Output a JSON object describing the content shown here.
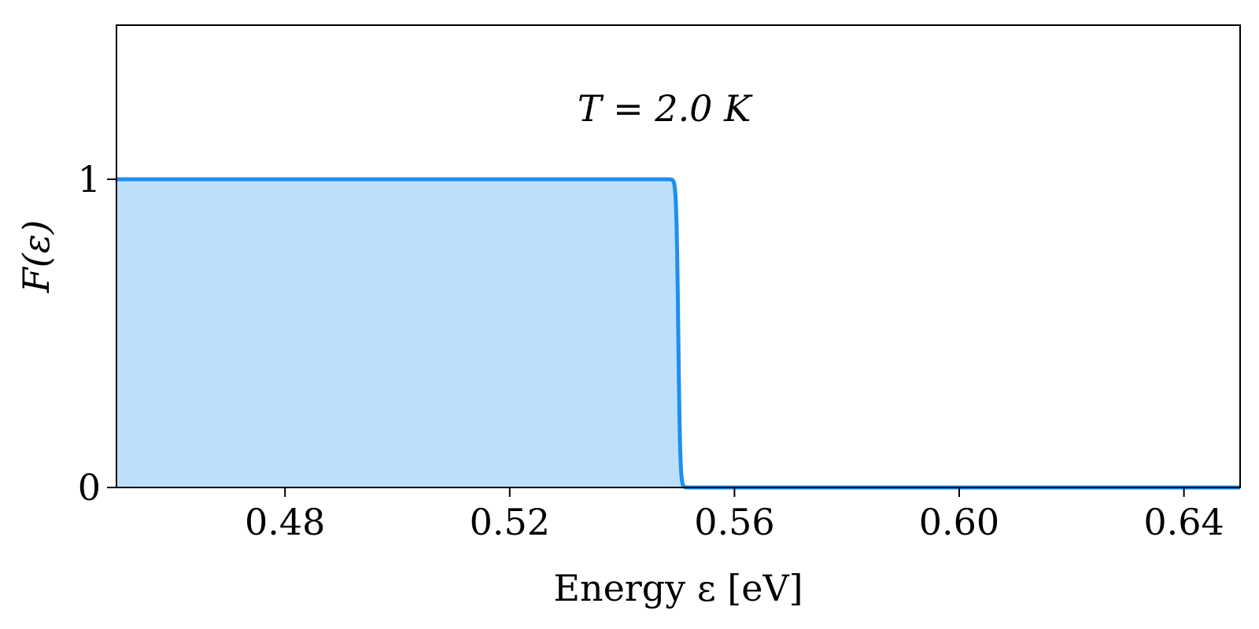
{
  "chart_data": {
    "type": "area",
    "title": "",
    "xlabel": "Energy ε [eV]",
    "ylabel": "F(ε)",
    "xlim": [
      0.45,
      0.65
    ],
    "ylim": [
      0,
      1.5
    ],
    "xticks": [
      {
        "value": 0.48,
        "label": "0.48"
      },
      {
        "value": 0.52,
        "label": "0.52"
      },
      {
        "value": 0.56,
        "label": "0.56"
      },
      {
        "value": 0.6,
        "label": "0.60"
      },
      {
        "value": 0.64,
        "label": "0.64"
      }
    ],
    "yticks": [
      {
        "value": 0,
        "label": "0"
      },
      {
        "value": 1,
        "label": "1"
      }
    ],
    "grid": false,
    "series": [
      {
        "color": "#1e8ff0",
        "fill_color": "#bcdffc",
        "filled": true,
        "function": "fermi-dirac",
        "mu": 0.55,
        "temperature_K": 2.0,
        "x_range": [
          0.45,
          0.65
        ]
      }
    ],
    "annotations": [
      {
        "text": "T = 2.0 K",
        "x": 0.5475,
        "y": 1.23
      }
    ]
  }
}
